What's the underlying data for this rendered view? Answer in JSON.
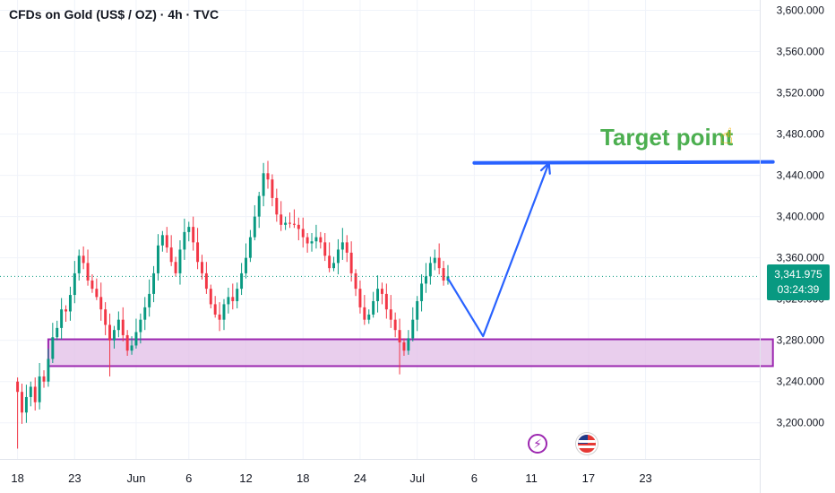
{
  "header": {
    "title": "CFDs on Gold (US$ / OZ) · 4h · TVC"
  },
  "price_badge": {
    "price": "3,341.975",
    "countdown": "03:24:39",
    "color": "#089981"
  },
  "annotation": {
    "target_label": "Target point",
    "target_icon": "pointing-up-hand-icon",
    "label_color": "#4caf50",
    "target_level": 3452
  },
  "events": [
    {
      "name": "lightning-event-icon",
      "glyph": "⚡"
    },
    {
      "name": "us-flag-event-icon"
    }
  ],
  "colors": {
    "up": "#089981",
    "down": "#f23645",
    "zone_fill": "#e1bee7",
    "zone_border": "#9c27b0",
    "arrow": "#2962ff",
    "grid": "#f0f3fa"
  },
  "chart_data": {
    "type": "candlestick",
    "symbol": "CFDs on Gold (US$ / OZ)",
    "interval": "4h",
    "y_ticks": [
      "3,600.000",
      "3,560.000",
      "3,520.000",
      "3,480.000",
      "3,440.000",
      "3,400.000",
      "3,360.000",
      "3,320.000",
      "3,280.000",
      "3,240.000",
      "3,200.000"
    ],
    "y_tick_values": [
      3600,
      3560,
      3520,
      3480,
      3440,
      3400,
      3360,
      3320,
      3280,
      3240,
      3200
    ],
    "x_ticks": [
      "18",
      "23",
      "Jun",
      "6",
      "12",
      "18",
      "24",
      "Jul",
      "6",
      "11",
      "17",
      "23"
    ],
    "x_tick_index": [
      0,
      13,
      27,
      39,
      52,
      65,
      78,
      91,
      104,
      117,
      130,
      143
    ],
    "ylim": [
      3165,
      3610
    ],
    "xlim": [
      -4,
      169
    ],
    "last_price": 3341.975,
    "support_zone": {
      "from_index": 7,
      "to_index": 172,
      "low": 3255,
      "high": 3281
    },
    "projection_path": [
      {
        "i": 98,
        "v": 3340
      },
      {
        "i": 106,
        "v": 3284
      },
      {
        "i": 121,
        "v": 3452
      }
    ],
    "target_line": {
      "from_index": 104,
      "to_index": 172,
      "v_start": 3452,
      "v_end": 3453
    },
    "closes": [
      3230,
      3210,
      3225,
      3235,
      3220,
      3245,
      3240,
      3262,
      3283,
      3292,
      3310,
      3308,
      3324,
      3345,
      3362,
      3355,
      3338,
      3330,
      3322,
      3310,
      3295,
      3280,
      3290,
      3300,
      3285,
      3270,
      3275,
      3288,
      3300,
      3312,
      3325,
      3345,
      3372,
      3382,
      3370,
      3356,
      3345,
      3368,
      3385,
      3390,
      3375,
      3356,
      3345,
      3330,
      3315,
      3305,
      3300,
      3315,
      3322,
      3318,
      3330,
      3345,
      3360,
      3380,
      3400,
      3420,
      3442,
      3436,
      3418,
      3402,
      3392,
      3394,
      3393,
      3392,
      3388,
      3380,
      3374,
      3376,
      3380,
      3375,
      3362,
      3350,
      3355,
      3368,
      3375,
      3365,
      3345,
      3330,
      3312,
      3300,
      3305,
      3318,
      3330,
      3325,
      3310,
      3300,
      3290,
      3278,
      3270,
      3282,
      3300,
      3318,
      3335,
      3342,
      3355,
      3360,
      3350,
      3338,
      3342
    ],
    "lows": [
      3175,
      null,
      null,
      null,
      null,
      null,
      null,
      null,
      null,
      null,
      null,
      null,
      null,
      null,
      null,
      null,
      null,
      null,
      null,
      null,
      null,
      3245,
      null,
      null,
      null,
      null,
      null,
      null,
      null,
      null,
      null,
      null,
      null,
      null,
      null,
      null,
      null,
      null,
      null,
      null,
      null,
      null,
      null,
      null,
      null,
      null,
      null,
      null,
      null,
      null,
      null,
      null,
      null,
      null,
      null,
      null,
      null,
      null,
      null,
      null,
      null,
      null,
      null,
      null,
      null,
      null,
      null,
      null,
      null,
      null,
      null,
      null,
      null,
      null,
      null,
      null,
      null,
      null,
      null,
      null,
      null,
      null,
      null,
      null,
      null,
      null,
      null,
      3247,
      null,
      null,
      null,
      null,
      null,
      null,
      null,
      null,
      null,
      null,
      null
    ],
    "highs": [
      null,
      null,
      null,
      null,
      null,
      null,
      null,
      null,
      null,
      null,
      null,
      null,
      null,
      null,
      3368,
      null,
      null,
      null,
      null,
      null,
      null,
      null,
      null,
      null,
      null,
      null,
      null,
      null,
      null,
      null,
      null,
      null,
      null,
      null,
      null,
      null,
      null,
      null,
      null,
      3395,
      null,
      null,
      null,
      null,
      null,
      null,
      null,
      null,
      null,
      null,
      null,
      null,
      null,
      null,
      null,
      null,
      3452,
      null,
      null,
      null,
      null,
      null,
      null,
      null,
      null,
      null,
      null,
      null,
      null,
      null,
      null,
      null,
      null,
      null,
      null,
      null,
      null,
      null,
      null,
      null,
      null,
      null,
      null,
      null,
      null,
      null,
      null,
      null,
      null,
      null,
      null,
      null,
      null,
      null,
      null,
      3368,
      null,
      null,
      null
    ]
  }
}
